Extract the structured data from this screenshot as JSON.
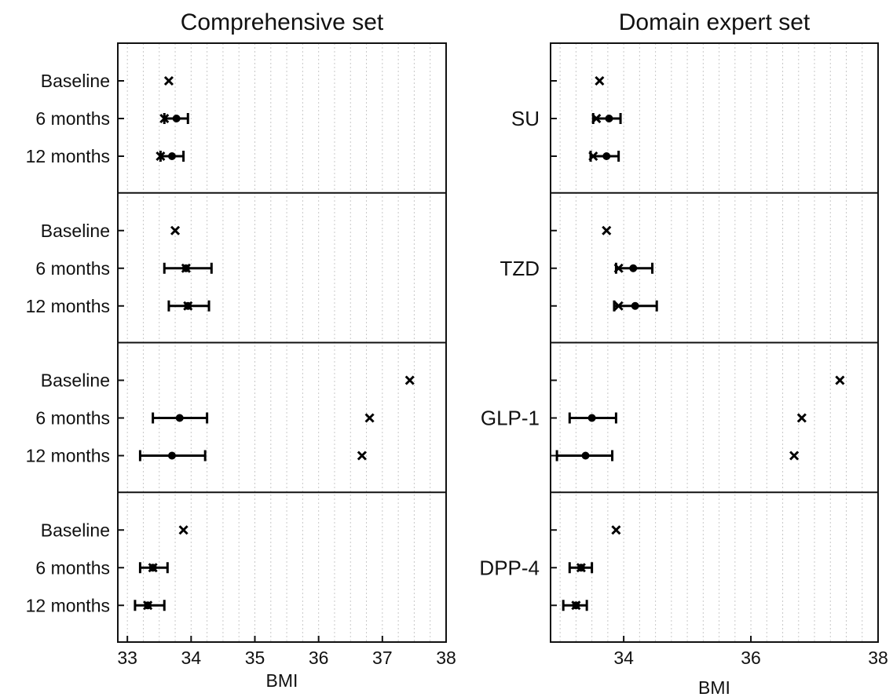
{
  "chart_data": [
    {
      "type": "scatter",
      "title": "Comprehensive set",
      "xlabel": "BMI",
      "xlim": [
        32.85,
        38
      ],
      "xticks": [
        "33",
        "34",
        "35",
        "36",
        "37",
        "38"
      ],
      "row_labels": [
        "Baseline",
        "6 months",
        "12 months"
      ],
      "groups": [
        {
          "name": "",
          "rows": [
            {
              "label": "Baseline",
              "cross": 33.65,
              "mean": null,
              "ci": null
            },
            {
              "label": "6 months",
              "cross": 33.58,
              "mean": 33.77,
              "ci": [
                33.58,
                33.95
              ]
            },
            {
              "label": "12 months",
              "cross": 33.52,
              "mean": 33.7,
              "ci": [
                33.52,
                33.88
              ]
            }
          ]
        },
        {
          "name": "",
          "rows": [
            {
              "label": "Baseline",
              "cross": 33.75,
              "mean": null,
              "ci": null
            },
            {
              "label": "6 months",
              "cross": 33.92,
              "mean": 33.92,
              "ci": [
                33.58,
                34.32
              ]
            },
            {
              "label": "12 months",
              "cross": 33.95,
              "mean": 33.95,
              "ci": [
                33.65,
                34.28
              ]
            }
          ]
        },
        {
          "name": "",
          "rows": [
            {
              "label": "Baseline",
              "cross": 37.43,
              "mean": null,
              "ci": null
            },
            {
              "label": "6 months",
              "cross": 36.8,
              "mean": 33.82,
              "ci": [
                33.4,
                34.25
              ]
            },
            {
              "label": "12 months",
              "cross": 36.68,
              "mean": 33.7,
              "ci": [
                33.2,
                34.22
              ]
            }
          ]
        },
        {
          "name": "",
          "rows": [
            {
              "label": "Baseline",
              "cross": 33.88,
              "mean": null,
              "ci": null
            },
            {
              "label": "6 months",
              "cross": 33.4,
              "mean": 33.4,
              "ci": [
                33.2,
                33.63
              ]
            },
            {
              "label": "12 months",
              "cross": 33.32,
              "mean": 33.32,
              "ci": [
                33.12,
                33.58
              ]
            }
          ]
        }
      ]
    },
    {
      "type": "scatter",
      "title": "Domain expert set",
      "xlabel": "BMI",
      "xlim": [
        32.85,
        38
      ],
      "xticks": [
        "34",
        "36",
        "38"
      ],
      "groups": [
        {
          "name": "SU",
          "rows": [
            {
              "label": "",
              "cross": 33.62,
              "mean": null,
              "ci": null
            },
            {
              "label": "",
              "cross": 33.57,
              "mean": 33.77,
              "ci": [
                33.52,
                33.95
              ]
            },
            {
              "label": "",
              "cross": 33.52,
              "mean": 33.73,
              "ci": [
                33.48,
                33.92
              ]
            }
          ]
        },
        {
          "name": "TZD",
          "rows": [
            {
              "label": "",
              "cross": 33.73,
              "mean": null,
              "ci": null
            },
            {
              "label": "",
              "cross": 33.92,
              "mean": 34.15,
              "ci": [
                33.88,
                34.45
              ]
            },
            {
              "label": "",
              "cross": 33.92,
              "mean": 34.18,
              "ci": [
                33.85,
                34.52
              ]
            }
          ]
        },
        {
          "name": "GLP-1",
          "rows": [
            {
              "label": "",
              "cross": 37.4,
              "mean": null,
              "ci": null
            },
            {
              "label": "",
              "cross": 36.8,
              "mean": 33.5,
              "ci": [
                33.15,
                33.88
              ]
            },
            {
              "label": "",
              "cross": 36.68,
              "mean": 33.4,
              "ci": [
                32.95,
                33.82
              ]
            }
          ]
        },
        {
          "name": "DPP-4",
          "rows": [
            {
              "label": "",
              "cross": 33.88,
              "mean": null,
              "ci": null
            },
            {
              "label": "",
              "cross": 33.33,
              "mean": 33.33,
              "ci": [
                33.15,
                33.5
              ]
            },
            {
              "label": "",
              "cross": 33.25,
              "mean": 33.25,
              "ci": [
                33.05,
                33.42
              ]
            }
          ]
        }
      ]
    }
  ]
}
